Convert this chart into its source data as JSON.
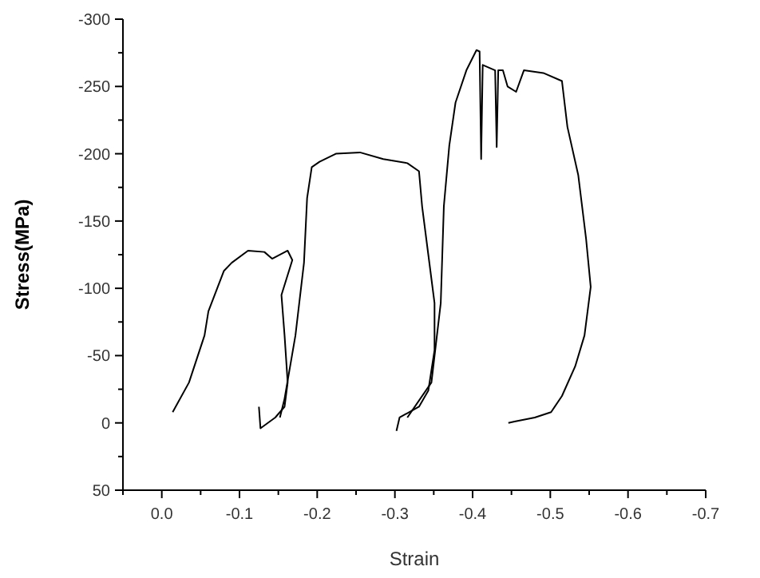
{
  "chart_data": {
    "type": "line",
    "xlabel": "Strain",
    "ylabel": "Stress(MPa)",
    "xlim": [
      0.05,
      -0.7
    ],
    "xticks": [
      {
        "value": 0.05,
        "label": null
      },
      {
        "value": 0,
        "label": "0.0"
      },
      {
        "value": -0.05,
        "label": null
      },
      -0.1,
      {
        "value": -0.15,
        "label": null
      },
      -0.2,
      {
        "value": -0.25,
        "label": null
      },
      -0.3,
      {
        "value": -0.35,
        "label": null
      },
      -0.4,
      {
        "value": -0.45,
        "label": null
      },
      -0.5,
      {
        "value": -0.55,
        "label": null
      },
      -0.6,
      {
        "value": -0.65,
        "label": null
      },
      -0.7
    ],
    "ylim": [
      50,
      -300
    ],
    "yticks": [
      50,
      {
        "value": 25,
        "label": null
      },
      0,
      {
        "value": -25,
        "label": null
      },
      -50,
      {
        "value": -75,
        "label": null
      },
      -100,
      {
        "value": -125,
        "label": null
      },
      -150,
      {
        "value": -175,
        "label": null
      },
      -200,
      {
        "value": -225,
        "label": null
      },
      -250,
      {
        "value": -275,
        "label": null
      },
      -300
    ],
    "grid": false,
    "marker": "none",
    "line_style": "solid",
    "series": [
      {
        "color": "#000000",
        "x": [
          -0.014,
          -0.035,
          -0.055,
          -0.06,
          -0.08,
          -0.09,
          -0.111,
          -0.132,
          -0.142,
          -0.162,
          -0.168,
          -0.154,
          -0.158,
          -0.162,
          -0.158,
          -0.146,
          -0.127,
          -0.125
        ],
        "values": [
          -8,
          -30,
          -65,
          -83,
          -113,
          -119,
          -128,
          -127,
          -122,
          -128,
          -121,
          -95,
          -65,
          -30,
          -12,
          -4,
          4,
          -12
        ]
      },
      {
        "color": "#000000",
        "x": [
          -0.152,
          -0.158,
          -0.172,
          -0.183,
          -0.187,
          -0.193,
          -0.203,
          -0.224,
          -0.255,
          -0.285,
          -0.316,
          -0.331,
          -0.335,
          -0.343,
          -0.351,
          -0.351,
          -0.343,
          -0.331,
          -0.306,
          -0.302
        ],
        "values": [
          -4,
          -18,
          -65,
          -119,
          -167,
          -190,
          -194,
          -200,
          -201,
          -196,
          -193,
          -187,
          -161,
          -125,
          -89,
          -54,
          -24,
          -12,
          -4,
          6
        ]
      },
      {
        "color": "#000000",
        "x": [
          -0.316,
          -0.347,
          -0.359,
          -0.363,
          -0.37,
          -0.378,
          -0.392,
          -0.405,
          -0.409,
          -0.411,
          -0.413,
          -0.429,
          -0.431,
          -0.433,
          -0.439,
          -0.445,
          -0.456,
          -0.466,
          -0.491,
          -0.515,
          -0.522,
          -0.536,
          -0.546,
          -0.552,
          -0.544,
          -0.532,
          -0.515,
          -0.501,
          -0.48,
          -0.454,
          -0.446
        ],
        "values": [
          -4,
          -30,
          -89,
          -161,
          -206,
          -238,
          -262,
          -277,
          -276,
          -196,
          -266,
          -262,
          -205,
          -262,
          -262,
          -250,
          -246,
          -262,
          -260,
          -254,
          -220,
          -184,
          -137,
          -101,
          -65,
          -42,
          -20,
          -8,
          -4,
          -1,
          0
        ]
      }
    ]
  }
}
